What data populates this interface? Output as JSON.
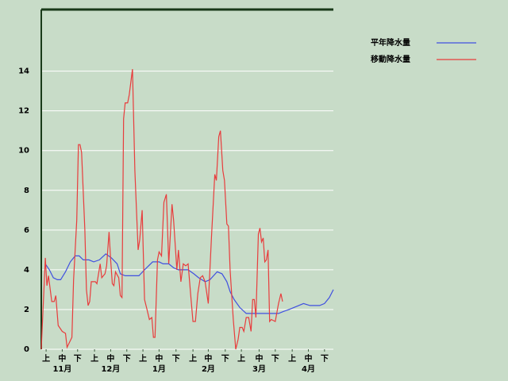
{
  "chart_data": {
    "type": "line",
    "xlim": [
      0,
      181
    ],
    "ylim": [
      0,
      17.1
    ],
    "yticks": [
      0,
      2,
      4,
      6,
      8,
      10,
      12,
      14
    ],
    "grid": true,
    "legend": "top-right",
    "xticks": [
      {
        "value": 3,
        "label": "上"
      },
      {
        "value": 13,
        "label": "中"
      },
      {
        "value": 22.5,
        "label": "下"
      },
      {
        "value": 33,
        "label": "上"
      },
      {
        "value": 43,
        "label": "中"
      },
      {
        "value": 53,
        "label": "下"
      },
      {
        "value": 63,
        "label": "上"
      },
      {
        "value": 73,
        "label": "中"
      },
      {
        "value": 83.5,
        "label": "下"
      },
      {
        "value": 94,
        "label": "上"
      },
      {
        "value": 103.5,
        "label": "中"
      },
      {
        "value": 114,
        "label": "下"
      },
      {
        "value": 124,
        "label": "上"
      },
      {
        "value": 135,
        "label": "中"
      },
      {
        "value": 145,
        "label": "下"
      },
      {
        "value": 155.5,
        "label": "上"
      },
      {
        "value": 165.5,
        "label": "中"
      },
      {
        "value": 175.5,
        "label": "下"
      }
    ],
    "month_labels": [
      {
        "value": 13,
        "label": "11月"
      },
      {
        "value": 43,
        "label": "12月"
      },
      {
        "value": 73,
        "label": "1月"
      },
      {
        "value": 103.5,
        "label": "2月"
      },
      {
        "value": 135,
        "label": "3月"
      },
      {
        "value": 165.5,
        "label": "4月"
      }
    ],
    "series": [
      {
        "name": "平年降水量",
        "color": "#4050e0",
        "x": [
          2.5,
          5,
          7.5,
          10,
          12,
          15,
          18,
          21,
          23.5,
          26,
          29.5,
          32.5,
          36,
          40,
          43.5,
          47,
          49,
          52,
          55,
          60.5,
          64,
          69,
          73,
          75.5,
          79,
          82,
          85,
          91,
          94.5,
          97.5,
          101.5,
          104.5,
          109,
          112,
          115,
          117,
          119.5,
          123,
          127,
          137,
          147,
          150,
          153.5,
          156.5,
          159.5,
          162.5,
          166.5,
          172.5,
          175.5,
          178.5,
          181
        ],
        "values": [
          4.3,
          4.0,
          3.6,
          3.5,
          3.5,
          3.9,
          4.4,
          4.7,
          4.7,
          4.5,
          4.5,
          4.4,
          4.5,
          4.8,
          4.6,
          4.3,
          3.8,
          3.7,
          3.7,
          3.7,
          4.0,
          4.4,
          4.4,
          4.3,
          4.3,
          4.1,
          4.0,
          4.0,
          3.8,
          3.6,
          3.4,
          3.5,
          3.9,
          3.8,
          3.4,
          2.9,
          2.5,
          2.1,
          1.8,
          1.8,
          1.8,
          1.9,
          2.0,
          2.1,
          2.2,
          2.3,
          2.2,
          2.2,
          2.3,
          2.6,
          3.0
        ]
      },
      {
        "name": "移動降水量",
        "color": "#e83c3c",
        "x": [
          0,
          2.5,
          3.5,
          4.5,
          6.5,
          8,
          9,
          10.5,
          13,
          15,
          16,
          19,
          20,
          22,
          23,
          24,
          25,
          27,
          28,
          29,
          30,
          31,
          33.5,
          34.5,
          36.5,
          37.5,
          39.5,
          40.5,
          42,
          43,
          44,
          45,
          46,
          48,
          49,
          50,
          51,
          52,
          53.5,
          54.5,
          56.5,
          58,
          60,
          61,
          62.5,
          64,
          65.5,
          67,
          68.5,
          69.5,
          70.5,
          72,
          73,
          74.5,
          76,
          77.5,
          79,
          81,
          82,
          84,
          85,
          86.5,
          88,
          89.5,
          91,
          92.5,
          94,
          95.5,
          97,
          98.5,
          100,
          101.5,
          103.5,
          105.5,
          107.5,
          108.5,
          110,
          111,
          112.5,
          113.5,
          115,
          116,
          117,
          119,
          120.5,
          122,
          123,
          124.5,
          125.5,
          127,
          128.5,
          130,
          131,
          132,
          133,
          134.5,
          135.5,
          136.5,
          137.5,
          138.5,
          139.5,
          140.5,
          141.5,
          142.5,
          145,
          147,
          148.5,
          149.5
        ],
        "values": [
          0,
          4.6,
          3.2,
          3.7,
          2.4,
          2.4,
          2.7,
          1.2,
          0.9,
          0.8,
          0.1,
          0.6,
          3.5,
          6.5,
          10.3,
          10.3,
          9.9,
          6,
          3,
          2.2,
          2.4,
          3.4,
          3.4,
          3.3,
          4.3,
          3.6,
          3.8,
          4.2,
          5.9,
          4.5,
          3.3,
          3.2,
          3.9,
          3.6,
          2.7,
          2.6,
          11.6,
          12.4,
          12.4,
          12.8,
          14.1,
          9,
          5,
          5.5,
          7,
          2.5,
          2,
          1.5,
          1.6,
          0.6,
          0.6,
          4.5,
          4.9,
          4.7,
          7.4,
          7.8,
          4.3,
          7.3,
          6.5,
          4,
          5,
          3.4,
          4.3,
          4.2,
          4.3,
          2.8,
          1.4,
          1.4,
          2.8,
          3.6,
          3.7,
          3.4,
          2.3,
          5.7,
          8.8,
          8.5,
          10.7,
          11,
          9,
          8.5,
          6.3,
          6.2,
          4,
          1.5,
          0,
          0.5,
          1.1,
          1.1,
          0.9,
          1.6,
          1.6,
          0.9,
          2.5,
          2.5,
          1.6,
          5.8,
          6.1,
          5.4,
          5.6,
          4.4,
          4.5,
          5,
          1.4,
          1.5,
          1.4,
          2.3,
          2.8,
          2.4
        ]
      }
    ]
  }
}
